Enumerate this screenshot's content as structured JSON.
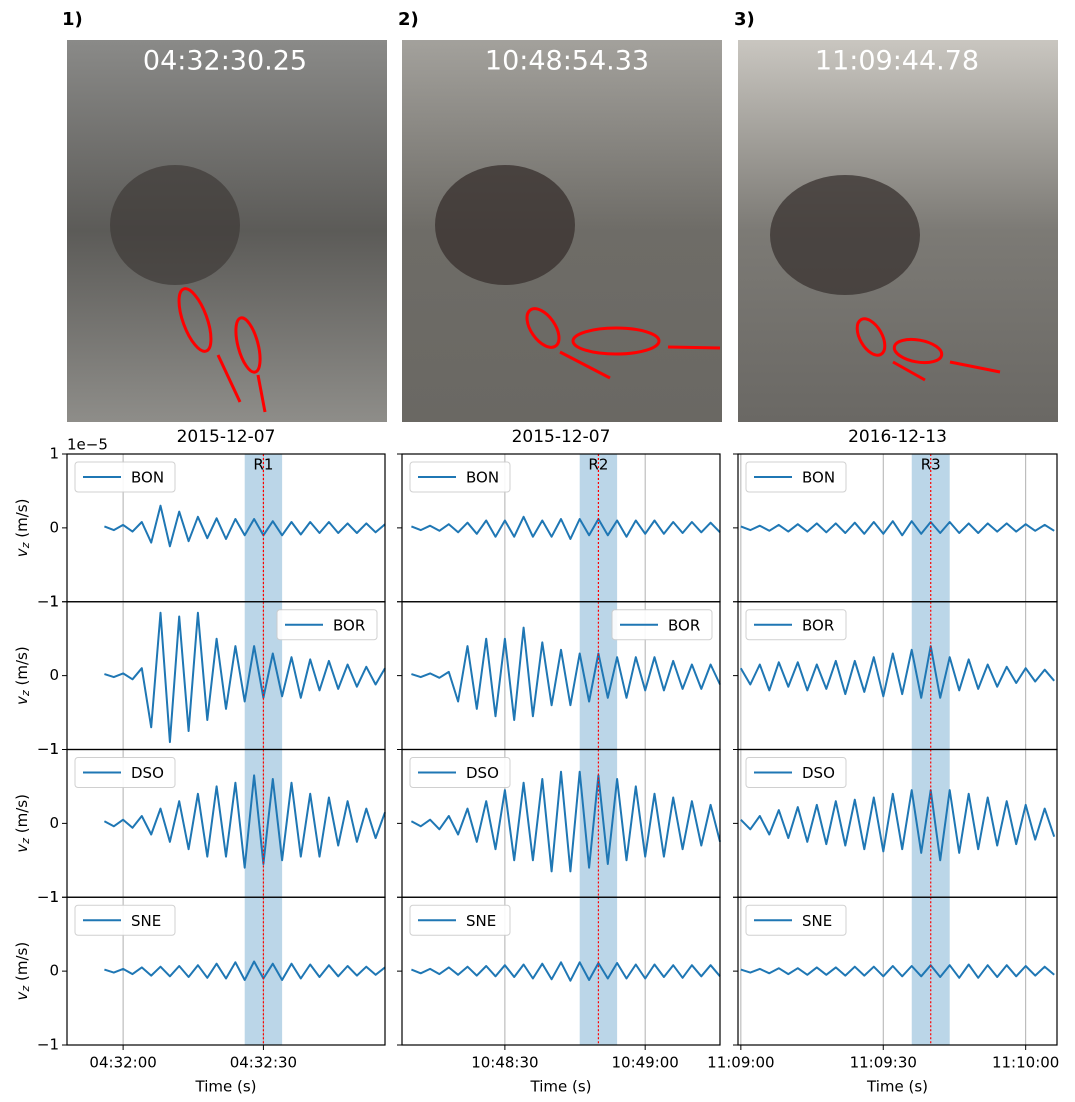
{
  "photos": [
    {
      "label": "1)",
      "timestamp": "04:32:30.25"
    },
    {
      "label": "2)",
      "timestamp": "10:48:54.33"
    },
    {
      "label": "3)",
      "timestamp": "11:09:44.78"
    }
  ],
  "chart_data": [
    {
      "type": "line",
      "title": "2015-12-07",
      "x_label": "Time (s)",
      "y_label": {
        "symbol": "v",
        "subscript": "z",
        "unit": "(m/s)"
      },
      "y_offset": "1e−5",
      "xlim": [
        16308,
        16376
      ],
      "xticks": [
        {
          "value": 16320,
          "label": "04:32:00"
        },
        {
          "value": 16350,
          "label": "04:32:30"
        }
      ],
      "ylim": [
        -1,
        1
      ],
      "yticks": [
        {
          "value": -1,
          "label": "−1"
        },
        0,
        1
      ],
      "grid": true,
      "event": {
        "label": "R1",
        "x": 16350,
        "span": [
          16346,
          16354
        ],
        "span_color": "#1f77b4",
        "line_color": "red"
      },
      "x": [
        16308,
        16310,
        16312,
        16314,
        16316,
        16318,
        16320,
        16322,
        16324,
        16326,
        16328,
        16330,
        16332,
        16334,
        16336,
        16338,
        16340,
        16342,
        16344,
        16346,
        16348,
        16350,
        16352,
        16354,
        16356,
        16358,
        16360,
        16362,
        16364,
        16366,
        16368,
        16370,
        16372,
        16374,
        16376
      ],
      "series": [
        {
          "name": "BON",
          "color": "#1f77b4",
          "legend": "upper left",
          "values": [
            null,
            null,
            null,
            null,
            0.02,
            -0.03,
            0.04,
            -0.05,
            0.08,
            -0.2,
            0.3,
            -0.25,
            0.22,
            -0.18,
            0.15,
            -0.14,
            0.13,
            -0.15,
            0.12,
            -0.1,
            0.12,
            -0.1,
            0.09,
            -0.1,
            0.08,
            -0.09,
            0.08,
            -0.07,
            0.08,
            -0.07,
            0.06,
            -0.07,
            0.06,
            -0.06,
            0.05
          ]
        },
        {
          "name": "BOR",
          "color": "#1f77b4",
          "legend": "upper right",
          "values": [
            null,
            null,
            null,
            null,
            0.02,
            -0.02,
            0.03,
            -0.05,
            0.1,
            -0.7,
            0.85,
            -0.9,
            0.8,
            -0.75,
            0.85,
            -0.6,
            0.5,
            -0.45,
            0.4,
            -0.35,
            0.4,
            -0.3,
            0.3,
            -0.28,
            0.25,
            -0.3,
            0.22,
            -0.2,
            0.2,
            -0.18,
            0.15,
            -0.15,
            0.12,
            -0.12,
            0.1
          ]
        },
        {
          "name": "DSO",
          "color": "#1f77b4",
          "legend": "upper left",
          "values": [
            null,
            null,
            null,
            null,
            0.03,
            -0.04,
            0.05,
            -0.06,
            0.1,
            -0.15,
            0.2,
            -0.25,
            0.3,
            -0.35,
            0.4,
            -0.45,
            0.5,
            -0.45,
            0.55,
            -0.6,
            0.65,
            -0.55,
            0.6,
            -0.5,
            0.55,
            -0.45,
            0.4,
            -0.45,
            0.35,
            -0.3,
            0.3,
            -0.25,
            0.2,
            -0.2,
            0.15
          ]
        },
        {
          "name": "SNE",
          "color": "#1f77b4",
          "legend": "upper left",
          "values": [
            null,
            null,
            null,
            null,
            0.02,
            -0.02,
            0.03,
            -0.04,
            0.05,
            -0.06,
            0.06,
            -0.07,
            0.07,
            -0.08,
            0.08,
            -0.09,
            0.1,
            -0.1,
            0.12,
            -0.12,
            0.13,
            -0.1,
            0.1,
            -0.12,
            0.1,
            -0.1,
            0.09,
            -0.08,
            0.08,
            -0.07,
            0.07,
            -0.06,
            0.06,
            -0.05,
            0.05
          ]
        }
      ]
    },
    {
      "type": "line",
      "title": "2015-12-07",
      "x_label": "Time (s)",
      "xlim": [
        38888,
        38956
      ],
      "xticks": [
        {
          "value": 38910,
          "label": "10:48:30"
        },
        {
          "value": 38940,
          "label": "10:49:00"
        }
      ],
      "ylim": [
        -1,
        1
      ],
      "grid": true,
      "event": {
        "label": "R2",
        "x": 38930,
        "span": [
          38926,
          38934
        ],
        "span_color": "#1f77b4",
        "line_color": "red"
      },
      "x": [
        38888,
        38890,
        38892,
        38894,
        38896,
        38898,
        38900,
        38902,
        38904,
        38906,
        38908,
        38910,
        38912,
        38914,
        38916,
        38918,
        38920,
        38922,
        38924,
        38926,
        38928,
        38930,
        38932,
        38934,
        38936,
        38938,
        38940,
        38942,
        38944,
        38946,
        38948,
        38950,
        38952,
        38954,
        38956
      ],
      "series": [
        {
          "name": "BON",
          "color": "#1f77b4",
          "legend": "upper left",
          "values": [
            null,
            0.02,
            -0.03,
            0.03,
            -0.04,
            0.05,
            -0.06,
            0.07,
            -0.08,
            0.1,
            -0.12,
            0.1,
            -0.12,
            0.15,
            -0.12,
            0.1,
            -0.12,
            0.12,
            -0.15,
            0.12,
            -0.1,
            0.12,
            -0.1,
            0.1,
            -0.12,
            0.1,
            -0.08,
            0.1,
            -0.08,
            0.08,
            -0.07,
            0.08,
            -0.06,
            0.07,
            -0.06
          ]
        },
        {
          "name": "BOR",
          "color": "#1f77b4",
          "legend": "upper right",
          "values": [
            null,
            0.02,
            -0.02,
            0.03,
            -0.03,
            0.05,
            -0.35,
            0.4,
            -0.45,
            0.5,
            -0.55,
            0.5,
            -0.6,
            0.65,
            -0.55,
            0.45,
            -0.4,
            0.35,
            -0.4,
            0.3,
            -0.35,
            0.3,
            -0.3,
            0.25,
            -0.3,
            0.25,
            -0.2,
            0.25,
            -0.2,
            0.2,
            -0.18,
            0.15,
            -0.18,
            0.15,
            -0.12
          ]
        },
        {
          "name": "DSO",
          "color": "#1f77b4",
          "legend": "upper left",
          "values": [
            null,
            0.03,
            -0.04,
            0.05,
            -0.08,
            0.1,
            -0.15,
            0.2,
            -0.25,
            0.3,
            -0.35,
            0.45,
            -0.5,
            0.55,
            -0.5,
            0.6,
            -0.65,
            0.7,
            -0.65,
            0.7,
            -0.6,
            0.65,
            -0.55,
            0.6,
            -0.5,
            0.5,
            -0.45,
            0.4,
            -0.45,
            0.35,
            -0.35,
            0.3,
            -0.3,
            0.25,
            -0.25
          ]
        },
        {
          "name": "SNE",
          "color": "#1f77b4",
          "legend": "upper left",
          "values": [
            null,
            0.02,
            -0.03,
            0.03,
            -0.04,
            0.05,
            -0.05,
            0.06,
            -0.06,
            0.07,
            -0.07,
            0.08,
            -0.08,
            0.09,
            -0.1,
            0.1,
            -0.11,
            0.12,
            -0.13,
            0.12,
            -0.12,
            0.11,
            -0.1,
            0.11,
            -0.1,
            0.09,
            -0.1,
            0.09,
            -0.08,
            0.08,
            -0.09,
            0.08,
            -0.07,
            0.08,
            -0.07
          ]
        }
      ]
    },
    {
      "type": "line",
      "title": "2016-12-13",
      "x_label": "Time (s)",
      "xlim": [
        40139.4,
        40206.6
      ],
      "xticks": [
        {
          "value": 40140,
          "label": "11:09:00"
        },
        {
          "value": 40170,
          "label": "11:09:30"
        },
        {
          "value": 40200,
          "label": "11:10:00"
        }
      ],
      "ylim": [
        -1,
        1
      ],
      "grid": true,
      "event": {
        "label": "R3",
        "x": 40180,
        "span": [
          40176,
          40184
        ],
        "span_color": "#1f77b4",
        "line_color": "red"
      },
      "x": [
        40140,
        40142,
        40144,
        40146,
        40148,
        40150,
        40152,
        40154,
        40156,
        40158,
        40160,
        40162,
        40164,
        40166,
        40168,
        40170,
        40172,
        40174,
        40176,
        40178,
        40180,
        40182,
        40184,
        40186,
        40188,
        40190,
        40192,
        40194,
        40196,
        40198,
        40200,
        40202,
        40204,
        40206
      ],
      "series": [
        {
          "name": "BON",
          "color": "#1f77b4",
          "legend": "upper left",
          "values": [
            0.02,
            -0.03,
            0.03,
            -0.04,
            0.04,
            -0.05,
            0.05,
            -0.05,
            0.06,
            -0.06,
            0.06,
            -0.07,
            0.07,
            -0.08,
            0.08,
            -0.08,
            0.09,
            -0.1,
            0.09,
            -0.08,
            0.08,
            -0.07,
            0.08,
            -0.07,
            0.06,
            -0.07,
            0.06,
            -0.05,
            0.06,
            -0.05,
            0.05,
            -0.04,
            0.04,
            -0.04
          ]
        },
        {
          "name": "BOR",
          "color": "#1f77b4",
          "legend": "upper left",
          "values": [
            0.1,
            -0.12,
            0.15,
            -0.2,
            0.18,
            -0.15,
            0.18,
            -0.2,
            0.15,
            -0.18,
            0.2,
            -0.25,
            0.2,
            -0.22,
            0.25,
            -0.28,
            0.3,
            -0.25,
            0.35,
            -0.3,
            0.4,
            -0.3,
            0.25,
            -0.2,
            0.22,
            -0.18,
            0.15,
            -0.15,
            0.12,
            -0.1,
            0.1,
            -0.08,
            0.08,
            -0.07
          ]
        },
        {
          "name": "DSO",
          "color": "#1f77b4",
          "legend": "upper left",
          "values": [
            0.05,
            -0.08,
            0.1,
            -0.15,
            0.18,
            -0.2,
            0.22,
            -0.25,
            0.25,
            -0.28,
            0.3,
            -0.3,
            0.32,
            -0.35,
            0.35,
            -0.38,
            0.4,
            -0.35,
            0.45,
            -0.4,
            0.45,
            -0.5,
            0.45,
            -0.4,
            0.4,
            -0.35,
            0.35,
            -0.3,
            0.3,
            -0.28,
            0.25,
            -0.22,
            0.2,
            -0.18
          ]
        },
        {
          "name": "SNE",
          "color": "#1f77b4",
          "legend": "upper left",
          "values": [
            0.02,
            -0.02,
            0.03,
            -0.03,
            0.04,
            -0.04,
            0.04,
            -0.05,
            0.05,
            -0.05,
            0.05,
            -0.06,
            0.06,
            -0.06,
            0.06,
            -0.07,
            0.07,
            -0.07,
            0.07,
            -0.07,
            0.08,
            -0.08,
            0.08,
            -0.09,
            0.09,
            -0.09,
            0.08,
            -0.08,
            0.08,
            -0.07,
            0.07,
            -0.06,
            0.06,
            -0.05
          ]
        }
      ]
    }
  ]
}
